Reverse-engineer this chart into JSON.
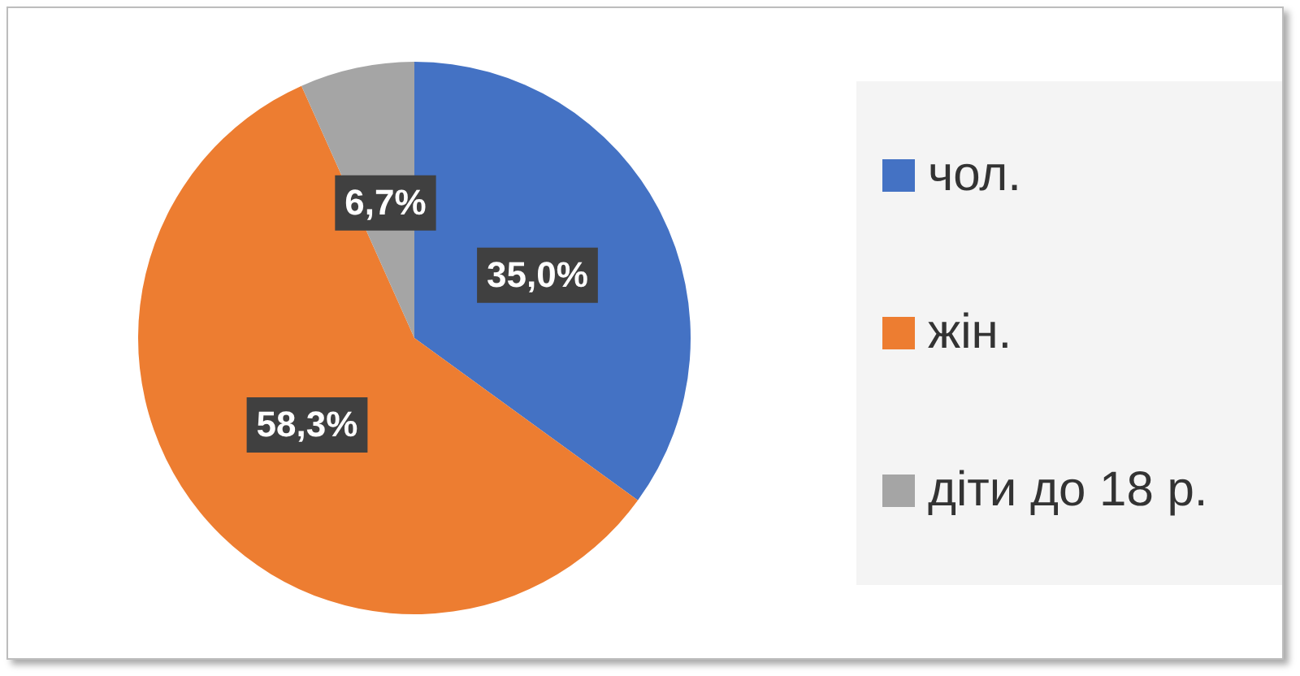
{
  "chart_data": {
    "type": "pie",
    "categories": [
      "чол.",
      "жін.",
      "діти до 18 р."
    ],
    "values": [
      35.0,
      58.3,
      6.7
    ],
    "colors": [
      "#4472c4",
      "#ed7d31",
      "#a5a5a5"
    ],
    "value_labels": [
      "35,0%",
      "58,3%",
      "6,7%"
    ],
    "legend": "right"
  }
}
